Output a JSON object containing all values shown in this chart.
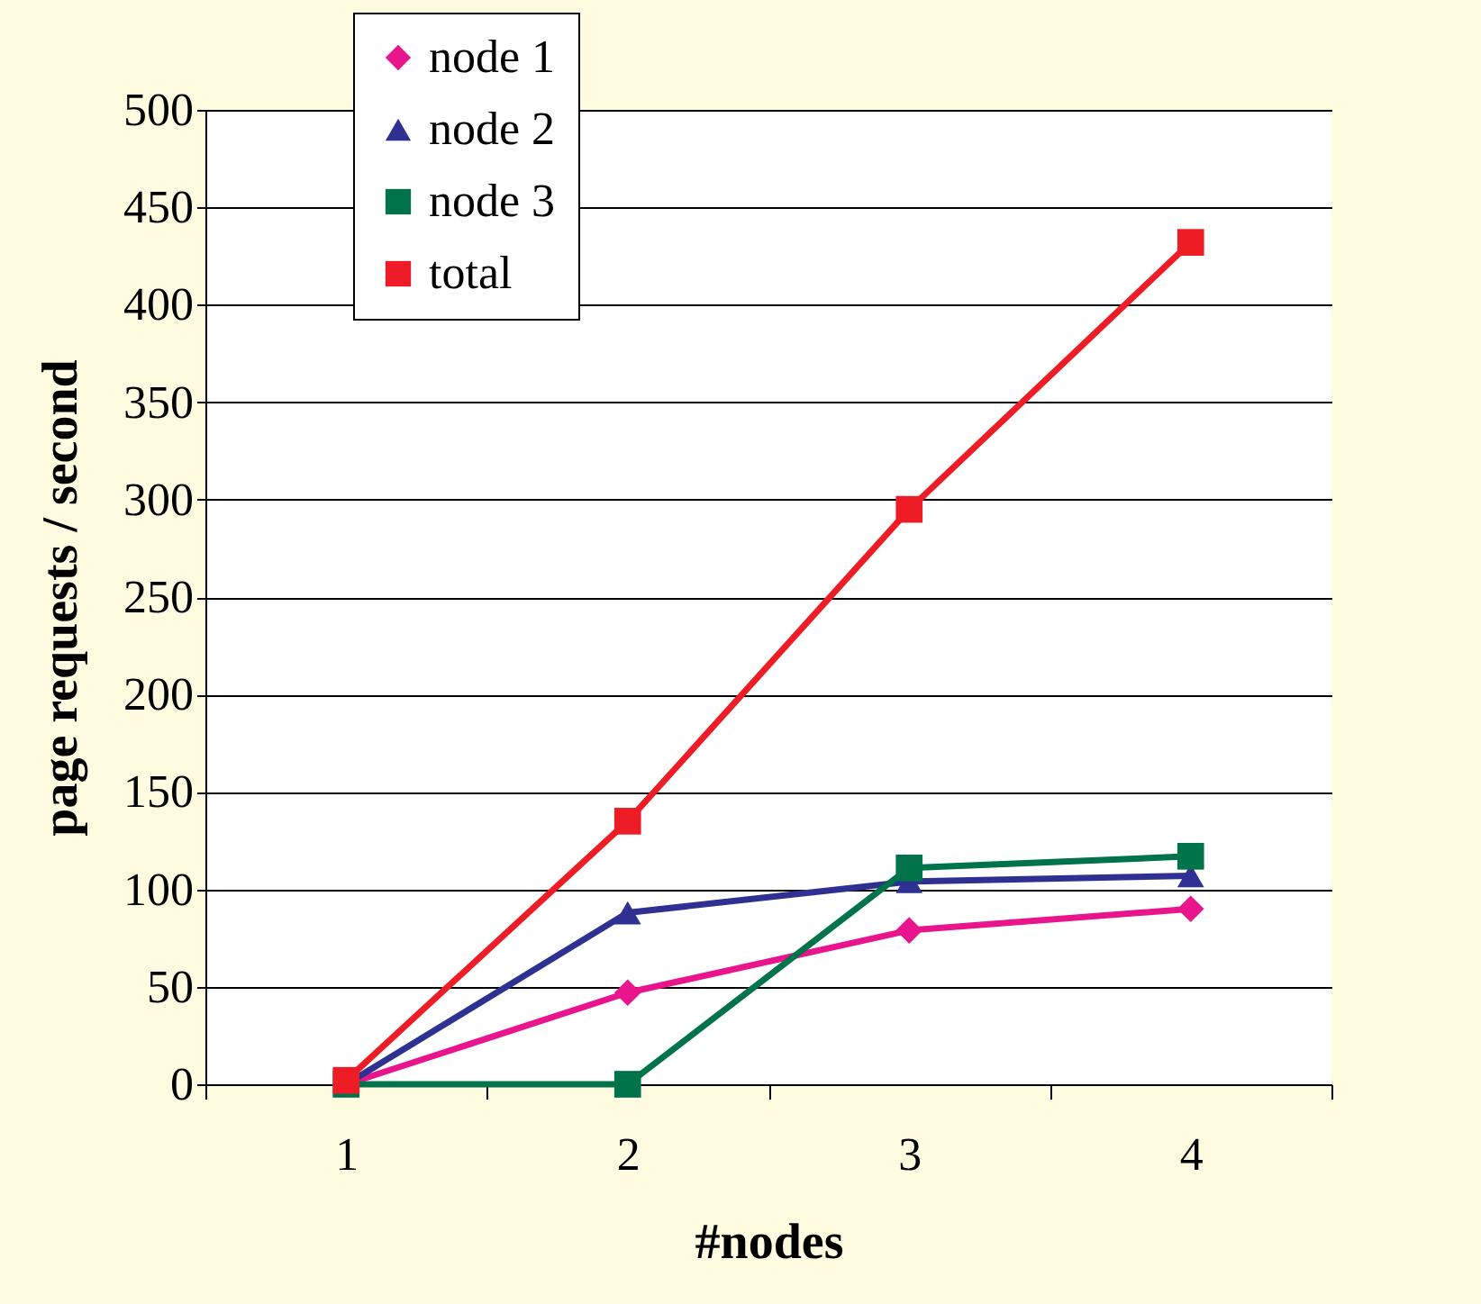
{
  "chart_data": {
    "type": "line",
    "xlabel": "#nodes",
    "ylabel": "page requests / second",
    "categories": [
      "1",
      "2",
      "3",
      "4"
    ],
    "series": [
      {
        "name": "node 1",
        "color": "#e8158c",
        "marker": "diamond",
        "values": [
          0,
          47,
          79,
          90
        ]
      },
      {
        "name": "node 2",
        "color": "#2e3192",
        "marker": "triangle",
        "values": [
          0,
          88,
          104,
          107
        ]
      },
      {
        "name": "node 3",
        "color": "#00734a",
        "marker": "square",
        "values": [
          0,
          0,
          111,
          117
        ]
      },
      {
        "name": "total",
        "color": "#ee1c25",
        "marker": "square",
        "values": [
          2,
          135,
          295,
          432
        ]
      }
    ],
    "ylim": [
      0,
      500
    ],
    "yticks": [
      0,
      50,
      100,
      150,
      200,
      250,
      300,
      350,
      400,
      450,
      500
    ],
    "grid": "y",
    "legend": "top left",
    "line_style": "solid"
  }
}
